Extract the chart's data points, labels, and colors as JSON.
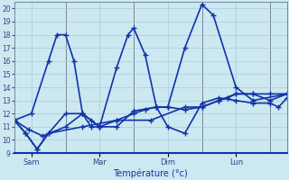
{
  "background_color": "#cce8f0",
  "grid_color": "#aaccdd",
  "line_color": "#1133aa",
  "xlabel": "Température (°c)",
  "ylim": [
    9,
    20.5
  ],
  "yticks": [
    9,
    10,
    11,
    12,
    13,
    14,
    15,
    16,
    17,
    18,
    19,
    20
  ],
  "xlim": [
    0,
    96
  ],
  "day_positions": [
    6,
    30,
    54,
    78
  ],
  "day_labels": [
    "Sam",
    "Mar",
    "Dim",
    "Lun"
  ],
  "vline_positions": [
    18,
    42,
    66,
    90
  ],
  "series1": [
    11.5,
    12.0,
    16.0,
    18.0,
    18.0,
    16.0,
    12.0,
    11.0,
    11.0,
    15.5,
    18.0,
    18.5,
    16.5,
    12.5,
    12.5,
    17.0,
    20.3,
    19.5,
    14.0,
    13.0,
    13.5
  ],
  "series1_x": [
    0,
    6,
    12,
    15,
    18,
    21,
    24,
    27,
    30,
    36,
    40,
    42,
    46,
    50,
    54,
    60,
    66,
    70,
    78,
    84,
    96
  ],
  "series2": [
    11.5,
    10.5,
    9.3,
    10.5,
    12.0,
    12.0,
    11.5,
    11.0,
    11.5,
    12.0,
    12.3,
    12.5,
    12.5,
    12.3,
    12.5,
    13.0,
    13.2,
    13.5,
    13.5,
    13.0,
    13.5
  ],
  "series2_x": [
    0,
    4,
    8,
    12,
    18,
    24,
    27,
    30,
    36,
    42,
    46,
    50,
    54,
    60,
    66,
    72,
    75,
    78,
    84,
    90,
    96
  ],
  "series3": [
    11.5,
    10.8,
    10.3,
    11.0,
    12.0,
    11.0,
    11.0,
    12.2,
    12.5,
    11.0,
    10.5,
    12.8,
    13.2,
    13.0,
    12.8,
    12.8,
    12.5,
    13.2
  ],
  "series3_x": [
    0,
    5,
    10,
    18,
    24,
    30,
    36,
    42,
    50,
    54,
    60,
    66,
    72,
    78,
    84,
    90,
    93,
    96
  ],
  "series4": [
    11.5,
    10.5,
    9.3,
    10.5,
    11.0,
    11.5,
    11.5,
    12.5,
    12.5,
    13.0,
    13.5,
    13.5,
    13.5,
    13.5
  ],
  "series4_x": [
    0,
    4,
    8,
    12,
    24,
    36,
    48,
    60,
    66,
    72,
    78,
    84,
    90,
    96
  ]
}
